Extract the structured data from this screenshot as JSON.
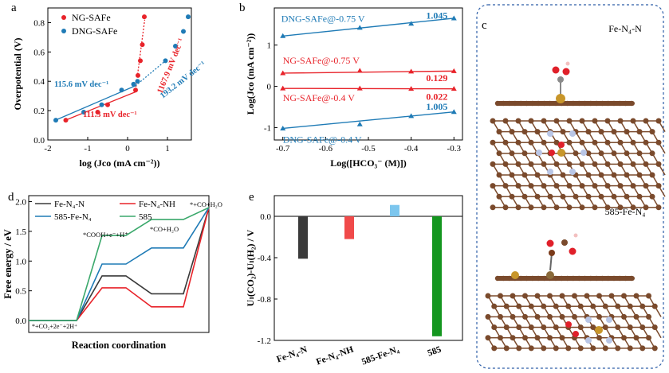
{
  "panels": {
    "a": "a",
    "b": "b",
    "c": "c",
    "d": "d",
    "e": "e"
  },
  "colors": {
    "red": "#e8232a",
    "blue": "#1f7bb6",
    "black": "#3a3a3a",
    "green": "#3aa86b",
    "lightblue": "#5ab4e5",
    "darkgreen": "#14961f",
    "atomBrown": "#7a4a2c",
    "atomN": "#b9c6e6",
    "atomFe": "#c8962a",
    "atomO": "#e0202a"
  },
  "chart_data": [
    {
      "id": "a",
      "type": "scatter",
      "xlabel": "log (Jco (mA cm⁻²))",
      "ylabel": "Overpotential (V)",
      "xlim": [
        -2,
        1.6
      ],
      "ylim": [
        0,
        0.9
      ],
      "xticks": [
        -2,
        -1,
        0,
        1
      ],
      "yticks": [
        0.0,
        0.2,
        0.4,
        0.6,
        0.8
      ],
      "series": [
        {
          "name": "NG-SAFe",
          "color": "#e8232a",
          "x": [
            -1.55,
            -0.75,
            -0.5,
            0.2,
            0.26,
            0.32,
            0.37,
            0.42
          ],
          "y": [
            0.135,
            0.19,
            0.24,
            0.34,
            0.44,
            0.54,
            0.65,
            0.84
          ]
        },
        {
          "name": "DNG-SAFe",
          "color": "#1f7bb6",
          "x": [
            -1.8,
            -1.1,
            -0.65,
            -0.15,
            0.15,
            0.25,
            0.95,
            1.2,
            1.4,
            1.52
          ],
          "y": [
            0.135,
            0.19,
            0.24,
            0.34,
            0.38,
            0.4,
            0.54,
            0.64,
            0.74,
            0.84
          ]
        }
      ],
      "annotations": {
        "tafel_red_low": "111.3 mV dec⁻¹",
        "tafel_red_high": "1167.9 mV dec⁻¹",
        "tafel_blue_low": "115.6 mV dec⁻¹",
        "tafel_blue_high": "193.2 mV dec⁻¹"
      }
    },
    {
      "id": "b",
      "type": "line",
      "xlabel": "Log([HCO₃⁻ (M)])",
      "ylabel": "Log(Jco (mA cm⁻²))",
      "xlim": [
        -0.72,
        -0.28
      ],
      "ylim": [
        -1.3,
        1.9
      ],
      "xticks": [
        -0.7,
        -0.6,
        -0.5,
        -0.4,
        -0.3
      ],
      "yticks": [
        -1,
        0,
        1
      ],
      "series": [
        {
          "name": "DNG-SAFe@-0.75 V",
          "color": "#1f7bb6",
          "slope": "1.045",
          "x": [
            -0.7,
            -0.52,
            -0.4,
            -0.3
          ],
          "y": [
            1.22,
            1.42,
            1.52,
            1.65
          ]
        },
        {
          "name": "NG-SAFe@-0.75 V",
          "color": "#e8232a",
          "slope": "0.129",
          "x": [
            -0.7,
            -0.52,
            -0.4,
            -0.3
          ],
          "y": [
            0.32,
            0.38,
            0.36,
            0.37
          ]
        },
        {
          "name": "NG-SAFe@-0.4 V",
          "color": "#e8232a",
          "slope": "0.022",
          "x": [
            -0.7,
            -0.52,
            -0.4,
            -0.3
          ],
          "y": [
            -0.05,
            -0.05,
            -0.06,
            -0.06
          ]
        },
        {
          "name": "DNG-SAFe@-0.4 V",
          "color": "#1f7bb6",
          "slope": "1.005",
          "x": [
            -0.7,
            -0.52,
            -0.4,
            -0.3
          ],
          "y": [
            -1.02,
            -0.92,
            -0.72,
            -0.62
          ]
        }
      ]
    },
    {
      "id": "d",
      "type": "line",
      "xlabel": "Reaction coordination",
      "ylabel": "Free energy / eV",
      "ylim": [
        -0.2,
        2.1
      ],
      "yticks": [
        0.0,
        0.5,
        1.0,
        1.5,
        2.0
      ],
      "steps": [
        "*+CO₂+2e⁻+2H⁺",
        "*COOH+e⁻+H⁺",
        "*CO+H₂O",
        "*+CO+H₂O"
      ],
      "series": [
        {
          "name": "Fe-N₄-N",
          "color": "#3a3a3a",
          "values": [
            0,
            0.75,
            0.45,
            1.9
          ]
        },
        {
          "name": "Fe-N₄-NH",
          "color": "#e8232a",
          "values": [
            0,
            0.55,
            0.23,
            1.9
          ]
        },
        {
          "name": "585-Fe-N₄",
          "color": "#1f7bb6",
          "values": [
            0,
            0.95,
            1.22,
            1.9
          ]
        },
        {
          "name": "585",
          "color": "#3aa86b",
          "values": [
            0,
            1.43,
            1.7,
            1.9
          ]
        }
      ]
    },
    {
      "id": "e",
      "type": "bar",
      "ylabel": "Uₗ(CO₂)-Uₗ(H₂) / V",
      "ylim": [
        -1.2,
        0.2
      ],
      "yticks": [
        0.0,
        -0.4,
        -0.8,
        -1.2
      ],
      "categories": [
        "Fe-N₄-N",
        "Fe-N₄-NH",
        "585-Fe-N₄",
        "585"
      ],
      "values": [
        -0.41,
        -0.22,
        0.11,
        -1.16
      ],
      "colors": [
        "#3a3a3a",
        "#f04a4a",
        "#7cc6ee",
        "#14961f"
      ]
    }
  ],
  "panel_c": {
    "label_top": "Fe-N₄-N",
    "label_bottom": "585-Fe-N₄"
  }
}
